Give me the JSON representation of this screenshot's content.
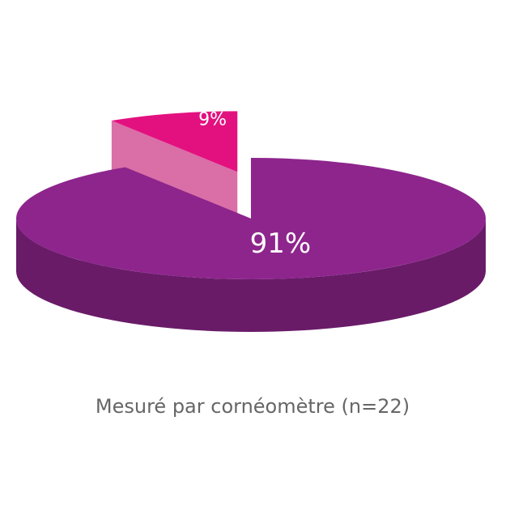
{
  "chart_data": {
    "type": "pie",
    "title": "Mesuré par cornéomètre (n=22)",
    "categories": [
      null,
      null
    ],
    "values": [
      91,
      9
    ],
    "value_labels": [
      "91%",
      "9%"
    ],
    "colors": [
      "#8e258d",
      "#e3117f"
    ],
    "explode": [
      false,
      true
    ],
    "three_d": true
  }
}
